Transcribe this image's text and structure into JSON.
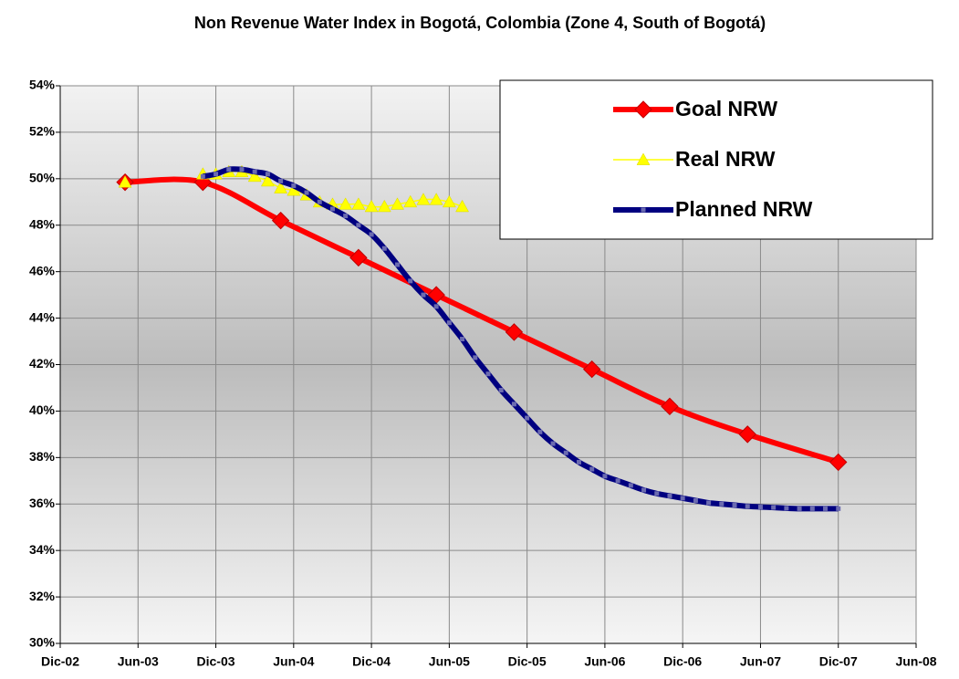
{
  "chart_data": {
    "type": "line",
    "title": "Non Revenue Water Index in Bogotá, Colombia (Zone 4, South of Bogotá)",
    "xlim": [
      "2002-12",
      "2008-06"
    ],
    "xticks": [
      {
        "value": "2002-12",
        "label": "Dic-02"
      },
      {
        "value": "2003-06",
        "label": "Jun-03"
      },
      {
        "value": "2003-12",
        "label": "Dic-03"
      },
      {
        "value": "2004-06",
        "label": "Jun-04"
      },
      {
        "value": "2004-12",
        "label": "Dic-04"
      },
      {
        "value": "2005-06",
        "label": "Jun-05"
      },
      {
        "value": "2005-12",
        "label": "Dic-05"
      },
      {
        "value": "2006-06",
        "label": "Jun-06"
      },
      {
        "value": "2006-12",
        "label": "Dic-06"
      },
      {
        "value": "2007-06",
        "label": "Jun-07"
      },
      {
        "value": "2007-12",
        "label": "Dic-07"
      },
      {
        "value": "2008-06",
        "label": "Jun-08"
      }
    ],
    "ylim": [
      30,
      54
    ],
    "yticks": [
      {
        "value": 30,
        "label": "30%"
      },
      {
        "value": 32,
        "label": "32%"
      },
      {
        "value": 34,
        "label": "34%"
      },
      {
        "value": 36,
        "label": "36%"
      },
      {
        "value": 38,
        "label": "38%"
      },
      {
        "value": 40,
        "label": "40%"
      },
      {
        "value": 42,
        "label": "42%"
      },
      {
        "value": 44,
        "label": "44%"
      },
      {
        "value": 46,
        "label": "46%"
      },
      {
        "value": 48,
        "label": "48%"
      },
      {
        "value": 50,
        "label": "50%"
      },
      {
        "value": 52,
        "label": "52%"
      },
      {
        "value": 54,
        "label": "54%"
      }
    ],
    "grid": true,
    "legend": "upper right",
    "series": [
      {
        "name": "Goal NRW",
        "color": "#ff0000",
        "marker": "diamond",
        "x": [
          "2003-05",
          "2003-11",
          "2004-05",
          "2004-11",
          "2005-05",
          "2005-11",
          "2006-05",
          "2006-11",
          "2007-05",
          "2007-12"
        ],
        "values": [
          49.85,
          49.85,
          48.2,
          46.6,
          45.0,
          43.4,
          41.8,
          40.2,
          39.0,
          37.8
        ]
      },
      {
        "name": "Real NRW",
        "color": "#ffff00",
        "marker": "triangle",
        "x": [
          "2003-05",
          "2003-06",
          "2003-07",
          "2003-08",
          "2003-09",
          "2003-10",
          "2003-11",
          "2003-12",
          "2004-01",
          "2004-02",
          "2004-03",
          "2004-04",
          "2004-05",
          "2004-06",
          "2004-07",
          "2004-08",
          "2004-09",
          "2004-10",
          "2004-11",
          "2004-12",
          "2005-01",
          "2005-02",
          "2005-03",
          "2005-04",
          "2005-05",
          "2005-06",
          "2005-07"
        ],
        "values": [
          49.85,
          null,
          null,
          null,
          null,
          null,
          50.2,
          50.2,
          50.3,
          50.3,
          50.1,
          49.9,
          49.6,
          49.5,
          49.3,
          49.0,
          48.9,
          48.9,
          48.9,
          48.8,
          48.8,
          48.9,
          49.0,
          49.1,
          49.1,
          49.0,
          48.8
        ]
      },
      {
        "name": "Planned NRW",
        "color": "#000080",
        "marker": "square",
        "x": [
          "2003-11",
          "2003-12",
          "2004-01",
          "2004-02",
          "2004-03",
          "2004-04",
          "2004-05",
          "2004-06",
          "2004-07",
          "2004-08",
          "2004-09",
          "2004-10",
          "2004-11",
          "2004-12",
          "2005-01",
          "2005-02",
          "2005-03",
          "2005-04",
          "2005-05",
          "2005-06",
          "2005-07",
          "2005-08",
          "2005-09",
          "2005-10",
          "2005-11",
          "2005-12",
          "2006-01",
          "2006-02",
          "2006-03",
          "2006-04",
          "2006-05",
          "2006-06",
          "2006-07",
          "2006-08",
          "2006-09",
          "2006-10",
          "2006-11",
          "2006-12",
          "2007-01",
          "2007-02",
          "2007-03",
          "2007-04",
          "2007-05",
          "2007-06",
          "2007-07",
          "2007-08",
          "2007-09",
          "2007-10",
          "2007-11",
          "2007-12"
        ],
        "values": [
          50.1,
          50.2,
          50.4,
          50.4,
          50.3,
          50.2,
          49.9,
          49.7,
          49.4,
          49.0,
          48.7,
          48.4,
          48.0,
          47.6,
          47.0,
          46.3,
          45.6,
          45.0,
          44.5,
          43.8,
          43.1,
          42.3,
          41.6,
          40.9,
          40.3,
          39.7,
          39.1,
          38.6,
          38.2,
          37.8,
          37.5,
          37.2,
          37.0,
          36.8,
          36.6,
          36.45,
          36.35,
          36.25,
          36.15,
          36.05,
          36.0,
          35.95,
          35.9,
          35.87,
          35.85,
          35.82,
          35.8,
          35.8,
          35.8,
          35.8
        ]
      }
    ]
  }
}
